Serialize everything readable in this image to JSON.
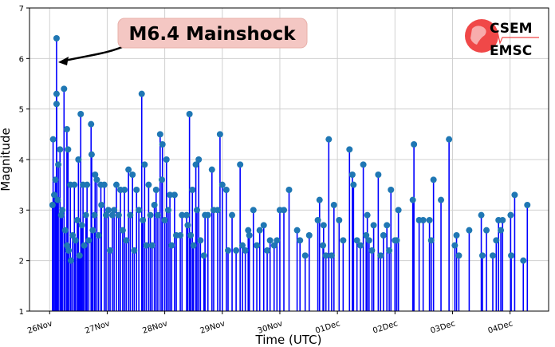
{
  "chart_data": {
    "type": "stem",
    "title": "",
    "xlabel": "Time (UTC)",
    "ylabel": "Magnitude",
    "ylim": [
      1,
      7
    ],
    "xlim_days": [
      -0.35,
      8.67
    ],
    "x_origin": "26Nov 00:00",
    "yticks": [
      1,
      2,
      3,
      4,
      5,
      6,
      7
    ],
    "xticks": [
      {
        "day": 0,
        "label": "26Nov"
      },
      {
        "day": 1,
        "label": "27Nov"
      },
      {
        "day": 2,
        "label": "28Nov"
      },
      {
        "day": 3,
        "label": "29Nov"
      },
      {
        "day": 4,
        "label": "30Nov"
      },
      {
        "day": 5,
        "label": "01Dec"
      },
      {
        "day": 6,
        "label": "02Dec"
      },
      {
        "day": 7,
        "label": "03Dec"
      },
      {
        "day": 8,
        "label": "04Dec"
      }
    ],
    "grid": true,
    "stem_color": "#0000ff",
    "marker_color": "#1f77b4",
    "annotation": {
      "text": "M6.4 Mainshock",
      "target_day": 0.12,
      "target_mag": 6.4,
      "box_color": "#f4c7c3"
    },
    "events": [
      [
        0.06,
        4.4
      ],
      [
        0.12,
        6.4
      ],
      [
        0.12,
        5.3
      ],
      [
        0.12,
        5.1
      ],
      [
        0.15,
        3.9
      ],
      [
        0.18,
        4.2
      ],
      [
        0.25,
        5.4
      ],
      [
        0.3,
        4.6
      ],
      [
        0.32,
        4.2
      ],
      [
        0.36,
        3.5
      ],
      [
        0.43,
        3.5
      ],
      [
        0.5,
        4.0
      ],
      [
        0.54,
        4.9
      ],
      [
        0.58,
        3.5
      ],
      [
        0.65,
        3.5
      ],
      [
        0.72,
        4.7
      ],
      [
        0.73,
        4.1
      ],
      [
        0.79,
        3.7
      ],
      [
        0.82,
        3.6
      ],
      [
        0.89,
        3.5
      ],
      [
        0.95,
        3.5
      ],
      [
        1.02,
        3.0
      ],
      [
        1.09,
        2.9
      ],
      [
        1.16,
        3.5
      ],
      [
        1.23,
        3.4
      ],
      [
        1.3,
        3.4
      ],
      [
        1.37,
        3.8
      ],
      [
        1.44,
        3.7
      ],
      [
        1.51,
        3.4
      ],
      [
        1.6,
        5.3
      ],
      [
        1.65,
        3.9
      ],
      [
        1.72,
        3.5
      ],
      [
        1.78,
        2.3
      ],
      [
        1.85,
        3.4
      ],
      [
        1.92,
        4.5
      ],
      [
        1.96,
        4.3
      ],
      [
        2.03,
        4.0
      ],
      [
        2.09,
        3.3
      ],
      [
        2.17,
        3.3
      ],
      [
        2.27,
        2.5
      ],
      [
        2.38,
        2.9
      ],
      [
        2.43,
        4.9
      ],
      [
        2.48,
        3.4
      ],
      [
        2.54,
        3.9
      ],
      [
        2.59,
        4.0
      ],
      [
        2.68,
        2.1
      ],
      [
        2.75,
        2.9
      ],
      [
        2.82,
        3.8
      ],
      [
        2.92,
        3.0
      ],
      [
        2.96,
        4.5
      ],
      [
        3.0,
        3.5
      ],
      [
        3.07,
        3.4
      ],
      [
        3.17,
        2.9
      ],
      [
        3.24,
        2.2
      ],
      [
        3.31,
        3.9
      ],
      [
        3.4,
        2.2
      ],
      [
        3.47,
        2.5
      ],
      [
        3.54,
        3.0
      ],
      [
        3.65,
        2.6
      ],
      [
        3.72,
        2.7
      ],
      [
        3.83,
        2.4
      ],
      [
        3.9,
        2.3
      ],
      [
        4.0,
        3.0
      ],
      [
        4.07,
        3.0
      ],
      [
        4.16,
        3.4
      ],
      [
        4.3,
        2.6
      ],
      [
        4.44,
        2.1
      ],
      [
        4.51,
        2.5
      ],
      [
        4.66,
        2.8
      ],
      [
        4.69,
        3.2
      ],
      [
        4.76,
        2.7
      ],
      [
        4.8,
        2.1
      ],
      [
        4.85,
        4.4
      ],
      [
        4.94,
        3.1
      ],
      [
        5.03,
        2.8
      ],
      [
        5.21,
        4.2
      ],
      [
        5.26,
        3.7
      ],
      [
        5.28,
        3.5
      ],
      [
        5.34,
        2.4
      ],
      [
        5.45,
        3.9
      ],
      [
        5.52,
        2.9
      ],
      [
        5.55,
        2.4
      ],
      [
        5.63,
        2.7
      ],
      [
        5.71,
        3.7
      ],
      [
        5.8,
        2.5
      ],
      [
        5.86,
        2.7
      ],
      [
        5.93,
        3.4
      ],
      [
        6.0,
        2.4
      ],
      [
        6.06,
        3.0
      ],
      [
        6.31,
        3.2
      ],
      [
        6.33,
        4.3
      ],
      [
        6.42,
        2.8
      ],
      [
        6.49,
        2.8
      ],
      [
        6.63,
        2.4
      ],
      [
        6.67,
        3.6
      ],
      [
        6.8,
        3.2
      ],
      [
        6.94,
        4.4
      ],
      [
        7.04,
        2.3
      ],
      [
        7.07,
        2.5
      ],
      [
        7.11,
        2.1
      ],
      [
        7.29,
        2.6
      ],
      [
        7.5,
        2.9
      ],
      [
        7.52,
        2.1
      ],
      [
        7.59,
        2.6
      ],
      [
        7.7,
        2.1
      ],
      [
        7.76,
        2.4
      ],
      [
        7.8,
        2.8
      ],
      [
        7.84,
        2.6
      ],
      [
        7.87,
        2.8
      ],
      [
        8.01,
        2.9
      ],
      [
        8.02,
        2.1
      ],
      [
        8.08,
        3.3
      ],
      [
        8.23,
        2.0
      ],
      [
        8.3,
        3.1
      ],
      [
        0.05,
        3.1
      ],
      [
        0.08,
        3.3
      ],
      [
        0.1,
        3.6
      ],
      [
        0.14,
        3.2
      ],
      [
        0.2,
        2.9
      ],
      [
        0.22,
        3.0
      ],
      [
        0.27,
        2.6
      ],
      [
        0.3,
        2.3
      ],
      [
        0.33,
        2.2
      ],
      [
        0.37,
        2.0
      ],
      [
        0.4,
        2.5
      ],
      [
        0.45,
        2.4
      ],
      [
        0.48,
        2.8
      ],
      [
        0.52,
        2.1
      ],
      [
        0.56,
        2.7
      ],
      [
        0.6,
        2.3
      ],
      [
        0.63,
        2.9
      ],
      [
        0.68,
        2.4
      ],
      [
        0.75,
        2.6
      ],
      [
        0.78,
        2.9
      ],
      [
        0.85,
        2.5
      ],
      [
        0.9,
        3.1
      ],
      [
        0.98,
        2.9
      ],
      [
        1.05,
        2.2
      ],
      [
        1.12,
        3.0
      ],
      [
        1.2,
        2.9
      ],
      [
        1.27,
        2.6
      ],
      [
        1.33,
        2.4
      ],
      [
        1.4,
        2.9
      ],
      [
        1.47,
        2.2
      ],
      [
        1.55,
        3.0
      ],
      [
        1.62,
        2.8
      ],
      [
        1.68,
        2.3
      ],
      [
        1.75,
        2.9
      ],
      [
        1.82,
        3.1
      ],
      [
        1.88,
        2.9
      ],
      [
        1.95,
        3.6
      ],
      [
        2.0,
        2.8
      ],
      [
        2.06,
        3.0
      ],
      [
        2.12,
        2.3
      ],
      [
        2.2,
        2.5
      ],
      [
        2.3,
        2.9
      ],
      [
        2.4,
        2.7
      ],
      [
        2.45,
        2.5
      ],
      [
        2.5,
        2.3
      ],
      [
        2.56,
        3.0
      ],
      [
        2.62,
        2.4
      ],
      [
        2.7,
        2.9
      ],
      [
        2.85,
        3.0
      ],
      [
        3.1,
        2.2
      ],
      [
        3.35,
        2.3
      ],
      [
        3.45,
        2.6
      ],
      [
        3.6,
        2.3
      ],
      [
        3.78,
        2.2
      ],
      [
        3.95,
        2.4
      ],
      [
        4.35,
        2.4
      ],
      [
        4.75,
        2.3
      ],
      [
        4.9,
        2.1
      ],
      [
        5.1,
        2.4
      ],
      [
        5.4,
        2.3
      ],
      [
        5.5,
        2.5
      ],
      [
        5.6,
        2.2
      ],
      [
        5.75,
        2.1
      ],
      [
        5.9,
        2.2
      ],
      [
        6.03,
        2.4
      ],
      [
        6.6,
        2.8
      ]
    ]
  },
  "logo": {
    "line1": "CSEM",
    "line2": "EMSC"
  }
}
